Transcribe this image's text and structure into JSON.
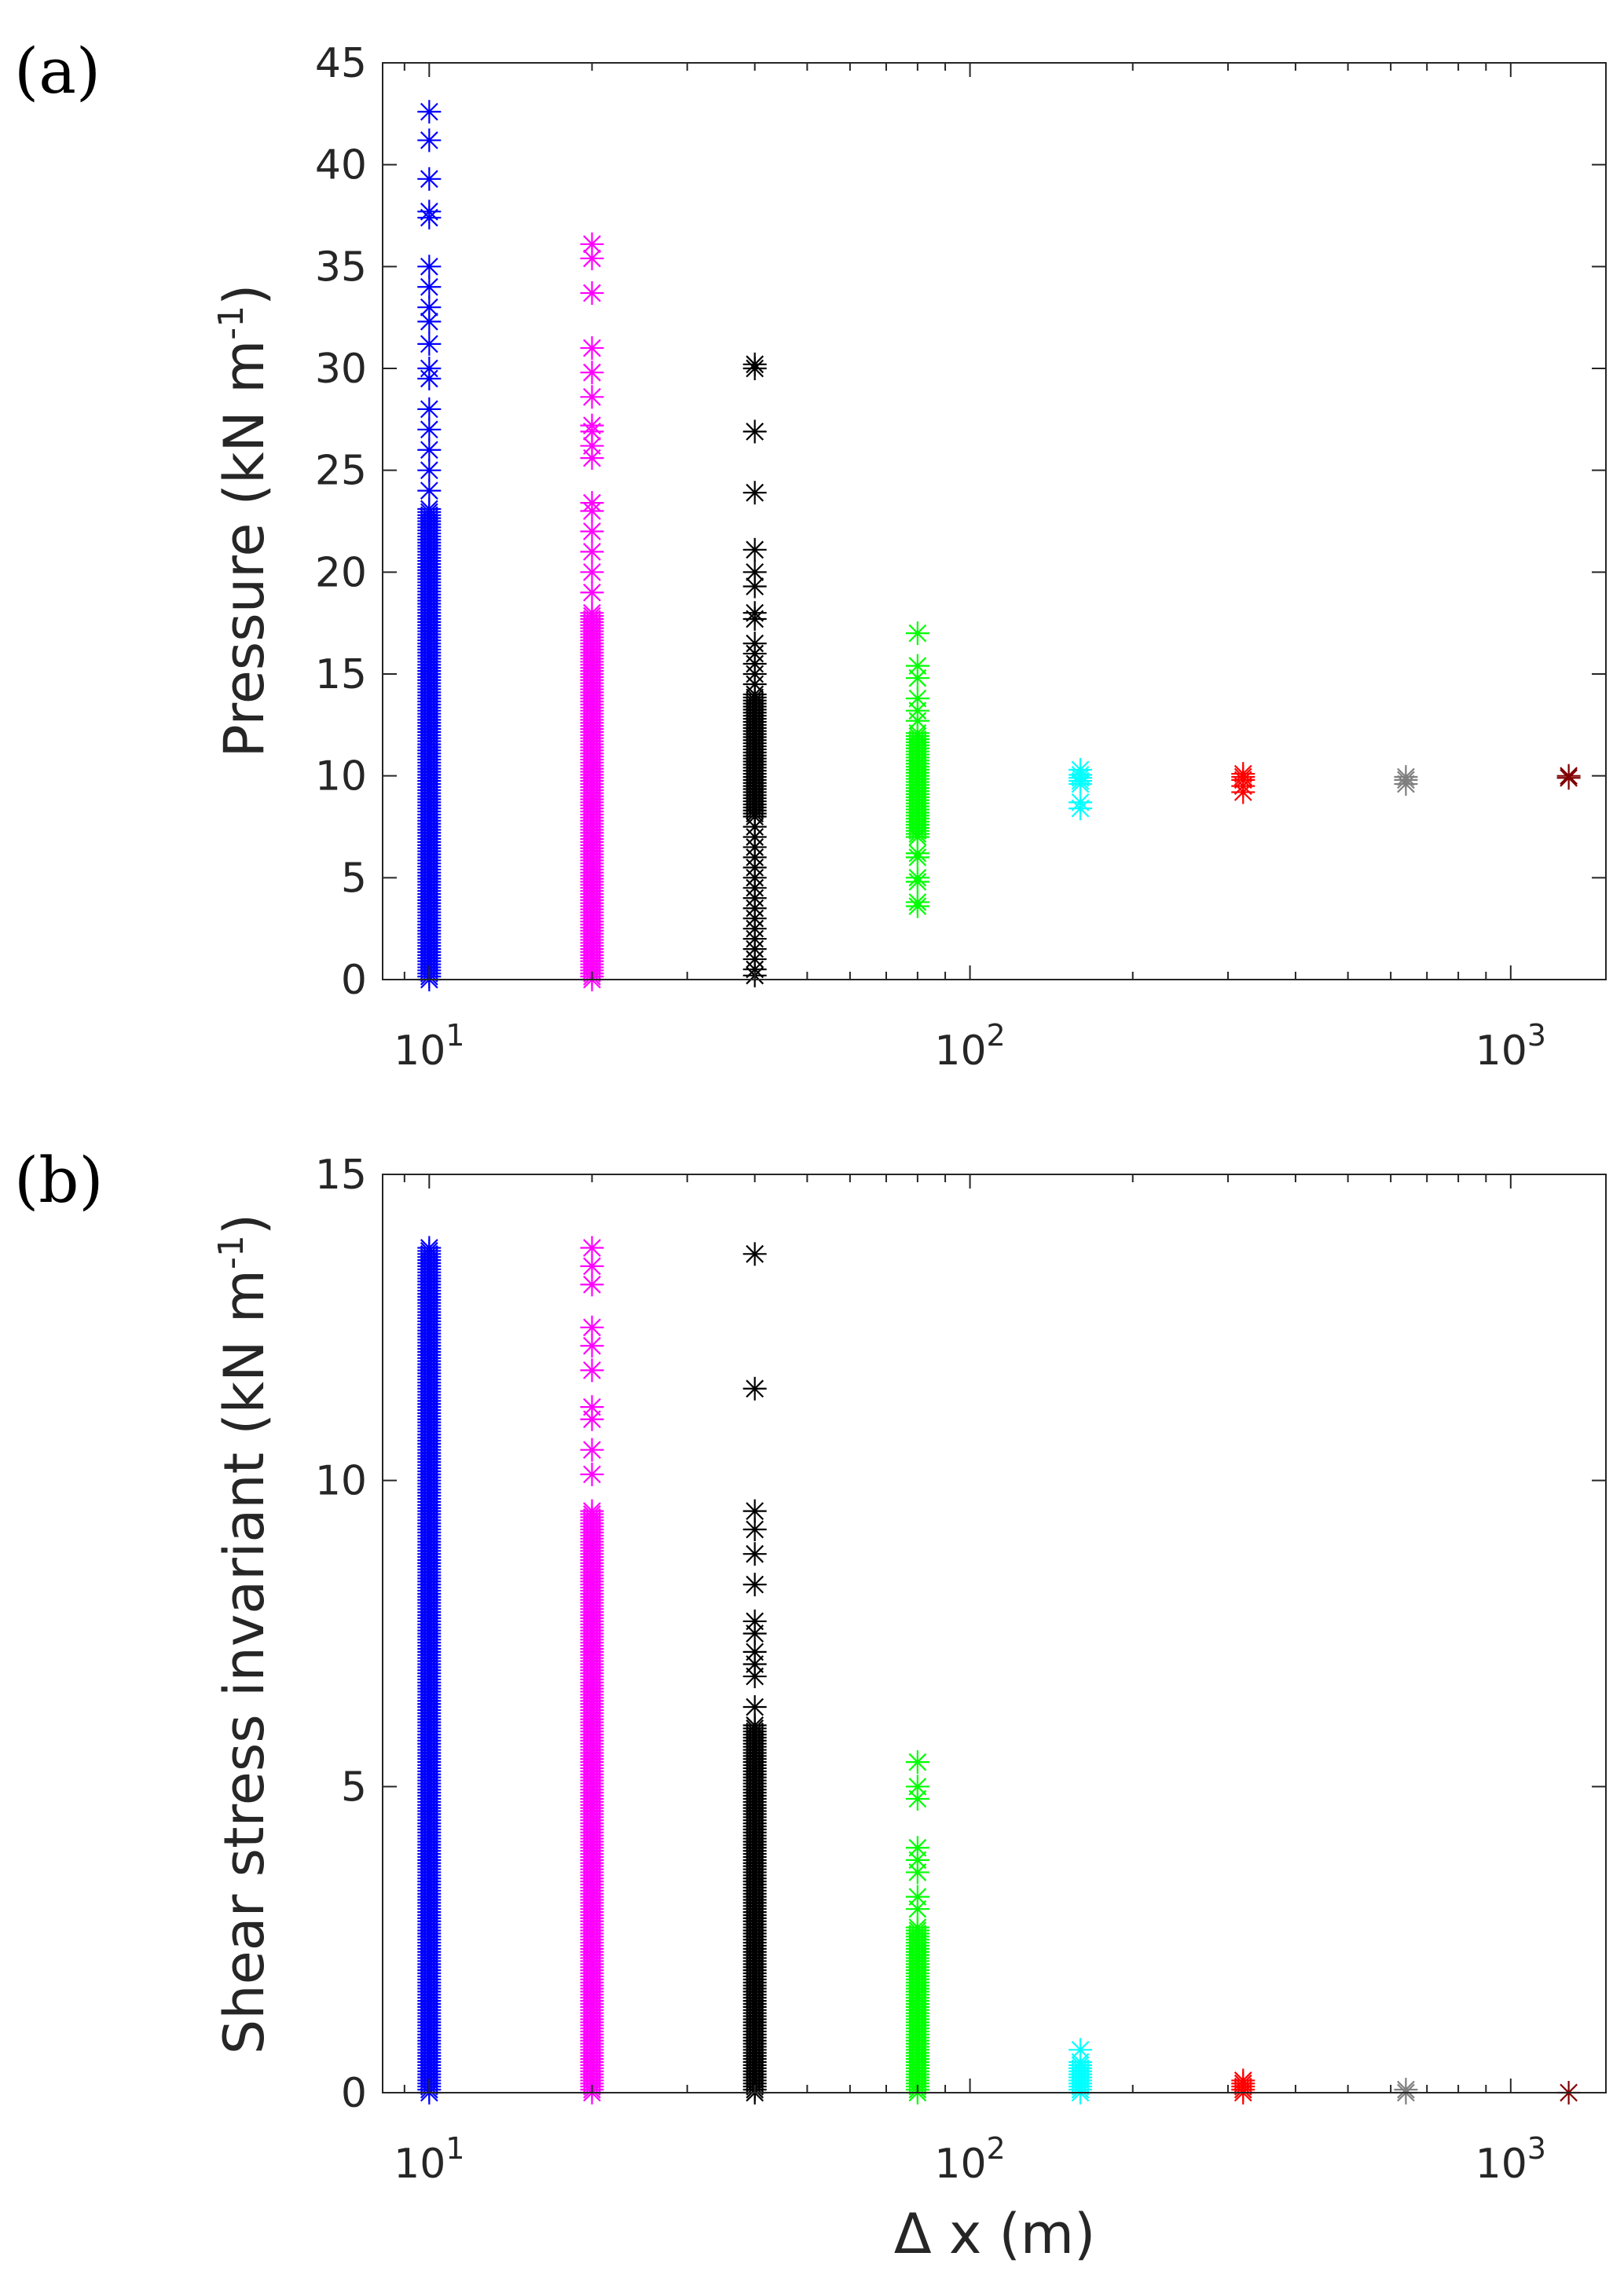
{
  "chart_data": [
    {
      "type": "scatter",
      "panel_label": "(a)",
      "title": "",
      "xlabel": "",
      "ylabel": "Pressure (kN m",
      "ylabel_sup": "-1",
      "ylabel_close": ")",
      "xscale": "log",
      "xlim": [
        8.2,
        1500
      ],
      "ylim": [
        0,
        45
      ],
      "yticks": [
        0,
        5,
        10,
        15,
        20,
        25,
        30,
        35,
        40,
        45
      ],
      "xticks": [
        {
          "base": "10",
          "exp": "1",
          "value": 10
        },
        {
          "base": "10",
          "exp": "2",
          "value": 100
        },
        {
          "base": "10",
          "exp": "3",
          "value": 1000
        }
      ],
      "marker": "asterisk",
      "series": [
        {
          "x": 10,
          "color": "#0000ff",
          "dense": [
            0,
            23.2
          ],
          "outliers": [
            24,
            25,
            26,
            27,
            28,
            29.5,
            30,
            31.2,
            32.3,
            33,
            34,
            35,
            37.4,
            37.7,
            39.3,
            41.2,
            42.6
          ]
        },
        {
          "x": 20,
          "color": "#ff00ff",
          "dense": [
            0,
            18
          ],
          "outliers": [
            19,
            20,
            21,
            22,
            23,
            23.4,
            25.6,
            26.2,
            26.9,
            27.2,
            28.6,
            29.8,
            31,
            33.7,
            35.4,
            36.1
          ]
        },
        {
          "x": 40,
          "color": "#000000",
          "dense": [
            8,
            14
          ],
          "outliers": [
            0.2,
            0.5,
            1,
            1.5,
            2,
            2.5,
            3,
            3.5,
            4,
            4.5,
            5,
            5.5,
            6,
            6.5,
            7,
            7.5,
            14.5,
            15,
            15.5,
            16,
            16.5,
            17.7,
            18,
            19.3,
            20,
            21.1,
            23.9,
            26.9,
            30,
            30.2
          ]
        },
        {
          "x": 80,
          "color": "#00ff00",
          "dense": [
            7,
            12.2
          ],
          "outliers": [
            3.6,
            3.8,
            4.8,
            5,
            6,
            6.2,
            12.7,
            13.2,
            13.8,
            14.8,
            15.4,
            17
          ]
        },
        {
          "x": 160,
          "color": "#00ffff",
          "dense": [
            9.6,
            10.1
          ],
          "outliers": [
            8.4,
            8.7,
            10.3
          ]
        },
        {
          "x": 320,
          "color": "#ff0000",
          "dense": [
            9.8,
            10.1
          ],
          "outliers": [
            9.2,
            9.5
          ]
        },
        {
          "x": 640,
          "color": "#808080",
          "dense": [
            9.8,
            10
          ],
          "outliers": [
            9.6
          ]
        },
        {
          "x": 1280,
          "color": "#800000",
          "dense": [
            10,
            10
          ],
          "outliers": [
            9.9
          ]
        }
      ]
    },
    {
      "type": "scatter",
      "panel_label": "(b)",
      "title": "",
      "xlabel": "Δ x (m)",
      "ylabel": "Shear stress invariant (kN m",
      "ylabel_sup": "-1",
      "ylabel_close": ")",
      "xscale": "log",
      "xlim": [
        8.2,
        1500
      ],
      "ylim": [
        0,
        15
      ],
      "yticks": [
        0,
        5,
        10,
        15
      ],
      "xticks": [
        {
          "base": "10",
          "exp": "1",
          "value": 10
        },
        {
          "base": "10",
          "exp": "2",
          "value": 100
        },
        {
          "base": "10",
          "exp": "3",
          "value": 1000
        }
      ],
      "marker": "asterisk",
      "series": [
        {
          "x": 10,
          "color": "#0000ff",
          "dense": [
            0,
            13.8
          ],
          "outliers": []
        },
        {
          "x": 20,
          "color": "#ff00ff",
          "dense": [
            0,
            9.5
          ],
          "outliers": [
            10.1,
            10.5,
            11,
            11.2,
            11.8,
            12.2,
            12.5,
            13.2,
            13.5,
            13.8
          ]
        },
        {
          "x": 40,
          "color": "#000000",
          "dense": [
            0,
            6
          ],
          "outliers": [
            6.3,
            6.8,
            7,
            7.2,
            7.5,
            7.7,
            8.3,
            8.8,
            9.2,
            9.5,
            11.5,
            13.7
          ]
        },
        {
          "x": 80,
          "color": "#00ff00",
          "dense": [
            0,
            2.7
          ],
          "outliers": [
            3,
            3.2,
            3.6,
            3.8,
            4,
            4.8,
            5,
            5.4
          ]
        },
        {
          "x": 160,
          "color": "#00ffff",
          "dense": [
            0,
            0.5
          ],
          "outliers": [
            0.7
          ]
        },
        {
          "x": 320,
          "color": "#ff0000",
          "dense": [
            0,
            0.15
          ],
          "outliers": [
            0.2
          ]
        },
        {
          "x": 640,
          "color": "#808080",
          "dense": [
            0,
            0.05
          ],
          "outliers": []
        },
        {
          "x": 1280,
          "color": "#800000",
          "dense": [
            0,
            0
          ],
          "outliers": []
        }
      ]
    }
  ]
}
